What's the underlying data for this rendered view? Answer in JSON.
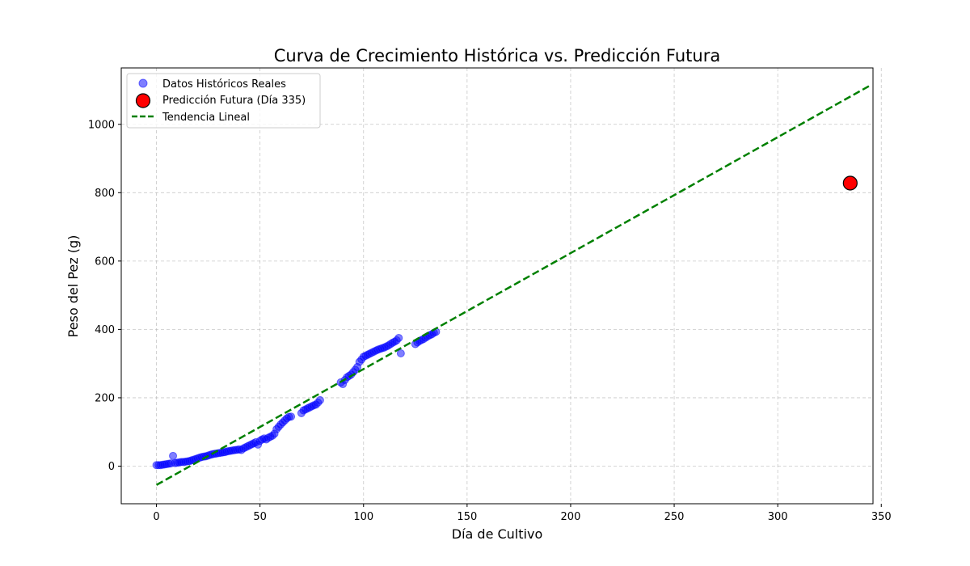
{
  "chart_data": {
    "type": "scatter",
    "title": "Curva de Crecimiento Histórica vs. Predicción Futura",
    "xlabel": "Día de Cultivo",
    "ylabel": "Peso del Pez (g)",
    "xlim": [
      -17,
      346
    ],
    "ylim": [
      -110,
      1165
    ],
    "xticks": [
      0,
      50,
      100,
      150,
      200,
      250,
      300,
      350
    ],
    "yticks": [
      0,
      200,
      400,
      600,
      800,
      1000
    ],
    "grid": true,
    "legend_position": "top-left",
    "series": [
      {
        "name": "Datos Históricos Reales",
        "kind": "scatter",
        "color": "#0000ff",
        "points": [
          [
            0,
            3
          ],
          [
            1,
            3
          ],
          [
            2,
            3
          ],
          [
            3,
            4
          ],
          [
            4,
            5
          ],
          [
            5,
            6
          ],
          [
            6,
            7
          ],
          [
            7,
            8
          ],
          [
            8,
            30
          ],
          [
            9,
            9
          ],
          [
            10,
            10
          ],
          [
            11,
            11
          ],
          [
            12,
            12
          ],
          [
            13,
            12
          ],
          [
            14,
            13
          ],
          [
            15,
            14
          ],
          [
            16,
            15
          ],
          [
            17,
            17
          ],
          [
            18,
            19
          ],
          [
            19,
            21
          ],
          [
            20,
            23
          ],
          [
            21,
            25
          ],
          [
            22,
            27
          ],
          [
            23,
            28
          ],
          [
            24,
            29
          ],
          [
            25,
            31
          ],
          [
            26,
            33
          ],
          [
            27,
            35
          ],
          [
            28,
            36
          ],
          [
            29,
            37
          ],
          [
            30,
            38
          ],
          [
            31,
            39
          ],
          [
            32,
            40
          ],
          [
            33,
            41
          ],
          [
            34,
            43
          ],
          [
            35,
            44
          ],
          [
            36,
            45
          ],
          [
            37,
            46
          ],
          [
            38,
            47
          ],
          [
            39,
            48
          ],
          [
            40,
            49
          ],
          [
            41,
            47
          ],
          [
            42,
            52
          ],
          [
            43,
            55
          ],
          [
            44,
            58
          ],
          [
            45,
            61
          ],
          [
            46,
            64
          ],
          [
            47,
            67
          ],
          [
            48,
            70
          ],
          [
            49,
            63
          ],
          [
            50,
            74
          ],
          [
            51,
            78
          ],
          [
            52,
            81
          ],
          [
            53,
            78
          ],
          [
            54,
            83
          ],
          [
            55,
            86
          ],
          [
            56,
            89
          ],
          [
            57,
            95
          ],
          [
            58,
            108
          ],
          [
            59,
            115
          ],
          [
            60,
            122
          ],
          [
            61,
            128
          ],
          [
            62,
            134
          ],
          [
            63,
            140
          ],
          [
            64,
            144
          ],
          [
            65,
            145
          ],
          [
            70,
            155
          ],
          [
            71,
            163
          ],
          [
            72,
            166
          ],
          [
            73,
            169
          ],
          [
            74,
            172
          ],
          [
            75,
            175
          ],
          [
            76,
            178
          ],
          [
            77,
            180
          ],
          [
            78,
            186
          ],
          [
            79,
            193
          ],
          [
            89,
            245
          ],
          [
            90,
            240
          ],
          [
            91,
            252
          ],
          [
            92,
            260
          ],
          [
            93,
            264
          ],
          [
            94,
            268
          ],
          [
            95,
            275
          ],
          [
            96,
            282
          ],
          [
            97,
            290
          ],
          [
            98,
            305
          ],
          [
            99,
            312
          ],
          [
            100,
            320
          ],
          [
            101,
            323
          ],
          [
            102,
            326
          ],
          [
            103,
            329
          ],
          [
            104,
            332
          ],
          [
            105,
            335
          ],
          [
            106,
            338
          ],
          [
            107,
            341
          ],
          [
            108,
            343
          ],
          [
            109,
            345
          ],
          [
            110,
            347
          ],
          [
            111,
            350
          ],
          [
            112,
            353
          ],
          [
            113,
            357
          ],
          [
            114,
            361
          ],
          [
            115,
            364
          ],
          [
            116,
            368
          ],
          [
            117,
            375
          ],
          [
            118,
            330
          ],
          [
            125,
            357
          ],
          [
            126,
            362
          ],
          [
            127,
            366
          ],
          [
            128,
            369
          ],
          [
            129,
            372
          ],
          [
            130,
            376
          ],
          [
            131,
            380
          ],
          [
            132,
            383
          ],
          [
            133,
            386
          ],
          [
            134,
            390
          ],
          [
            135,
            393
          ]
        ]
      },
      {
        "name": "Predicción Futura (Día 335)",
        "kind": "scatter",
        "color": "#ff0000",
        "points": [
          [
            335,
            828
          ]
        ]
      },
      {
        "name": "Tendencia Lineal",
        "kind": "line",
        "color": "#008000",
        "style": "dashed",
        "points": [
          [
            0,
            -55
          ],
          [
            345,
            1115
          ]
        ]
      }
    ]
  }
}
